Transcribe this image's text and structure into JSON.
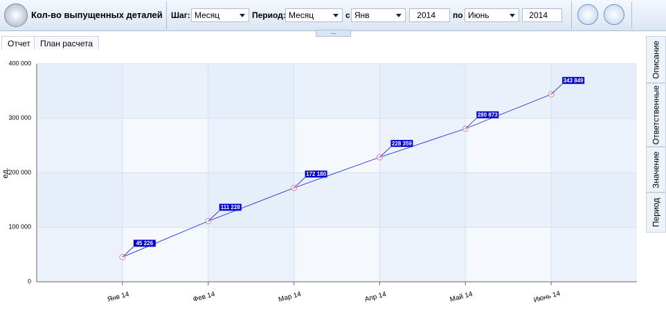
{
  "toolbar": {
    "title": "Кол-во выпущенных деталей",
    "step_label": "Шаг:",
    "step_value": "Месяц",
    "period_label": "Период:",
    "period_value": "Месяц",
    "from_label": "с",
    "from_month": "Янв",
    "from_year": "2014",
    "to_label": "по",
    "to_month": "Июнь",
    "to_year": "2014",
    "more": "..."
  },
  "tabs": [
    "Отчет",
    "План расчета"
  ],
  "side_tabs": [
    "Описание",
    "Ответственные",
    "Значение",
    "Период"
  ],
  "chart_data": {
    "type": "line",
    "y_label": "ед.",
    "categories": [
      "Янв 14",
      "Фев 14",
      "Мар 14",
      "Апр 14",
      "Май 14",
      "Июнь 14"
    ],
    "values": [
      45226,
      111228,
      172180,
      228359,
      280873,
      343849
    ],
    "value_labels": [
      "45 226",
      "111 228",
      "172 180",
      "228 359",
      "280 873",
      "343 849"
    ],
    "color": "#3a3ae0",
    "ylim": [
      0,
      400000
    ],
    "yticks": [
      0,
      {
        "value": 100000,
        "label": "100 000"
      },
      {
        "value": 200000,
        "label": "200 000"
      },
      {
        "value": 300000,
        "label": "300 000"
      },
      {
        "value": 400000,
        "label": "400 000"
      }
    ],
    "grid": true
  }
}
